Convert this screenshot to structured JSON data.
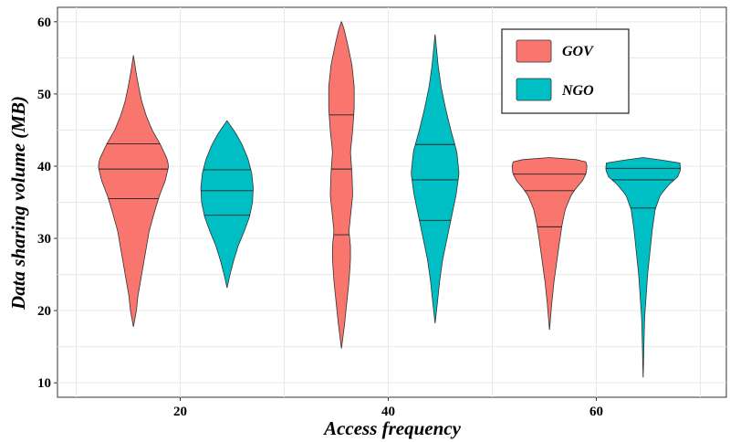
{
  "chart_data": {
    "type": "violin",
    "xlabel": "Access frequency",
    "ylabel": "Data sharing volume (MB)",
    "categories": [
      "20",
      "40",
      "60"
    ],
    "ylim": [
      8,
      62
    ],
    "yticks": [
      10,
      20,
      30,
      40,
      50,
      60
    ],
    "grid": true,
    "legend_position": "top-right",
    "series": [
      {
        "name": "GOV",
        "color": "#F8766D",
        "violins": [
          {
            "category": "20",
            "quantiles": [
              35.5,
              39.6,
              43.1
            ],
            "profile": [
              [
                17.8,
                0.002
              ],
              [
                20,
                0.08
              ],
              [
                22,
                0.12
              ],
              [
                25,
                0.22
              ],
              [
                28,
                0.32
              ],
              [
                31,
                0.42
              ],
              [
                34,
                0.58
              ],
              [
                36,
                0.7
              ],
              [
                38,
                0.85
              ],
              [
                40,
                0.94
              ],
              [
                41,
                0.9
              ],
              [
                43,
                0.72
              ],
              [
                45,
                0.5
              ],
              [
                47,
                0.34
              ],
              [
                49,
                0.22
              ],
              [
                51,
                0.14
              ],
              [
                53,
                0.07
              ],
              [
                55.3,
                0.002
              ]
            ]
          },
          {
            "category": "40",
            "quantiles": [
              30.5,
              39.6,
              47.1
            ],
            "profile": [
              [
                14.8,
                0.002
              ],
              [
                18,
                0.08
              ],
              [
                21,
                0.14
              ],
              [
                24,
                0.2
              ],
              [
                27,
                0.24
              ],
              [
                29,
                0.24
              ],
              [
                31,
                0.2
              ],
              [
                33,
                0.24
              ],
              [
                36,
                0.3
              ],
              [
                39,
                0.28
              ],
              [
                42,
                0.24
              ],
              [
                45,
                0.3
              ],
              [
                48,
                0.34
              ],
              [
                51,
                0.34
              ],
              [
                54,
                0.28
              ],
              [
                57,
                0.16
              ],
              [
                59,
                0.07
              ],
              [
                60,
                0.002
              ]
            ]
          },
          {
            "category": "60",
            "quantiles": [
              31.6,
              36.6,
              38.9
            ],
            "profile": [
              [
                17.4,
                0.002
              ],
              [
                21,
                0.06
              ],
              [
                24,
                0.12
              ],
              [
                27,
                0.2
              ],
              [
                30,
                0.28
              ],
              [
                32,
                0.34
              ],
              [
                34,
                0.42
              ],
              [
                36,
                0.58
              ],
              [
                37,
                0.72
              ],
              [
                38,
                0.88
              ],
              [
                39,
                0.98
              ],
              [
                40,
                1.0
              ],
              [
                40.8,
                0.96
              ],
              [
                41.2,
                0.002
              ]
            ]
          }
        ]
      },
      {
        "name": "NGO",
        "color": "#00BFC4",
        "violins": [
          {
            "category": "20",
            "quantiles": [
              33.2,
              36.6,
              39.5
            ],
            "profile": [
              [
                23.2,
                0.002
              ],
              [
                25,
                0.08
              ],
              [
                27,
                0.18
              ],
              [
                29,
                0.3
              ],
              [
                31,
                0.46
              ],
              [
                33,
                0.6
              ],
              [
                35,
                0.68
              ],
              [
                37,
                0.7
              ],
              [
                39,
                0.66
              ],
              [
                41,
                0.56
              ],
              [
                43,
                0.4
              ],
              [
                44.5,
                0.24
              ],
              [
                46.3,
                0.002
              ]
            ]
          },
          {
            "category": "40",
            "quantiles": [
              32.5,
              38.1,
              43.0
            ],
            "profile": [
              [
                18.3,
                0.002
              ],
              [
                21,
                0.06
              ],
              [
                24,
                0.12
              ],
              [
                27,
                0.2
              ],
              [
                30,
                0.32
              ],
              [
                33,
                0.44
              ],
              [
                36,
                0.56
              ],
              [
                39,
                0.64
              ],
              [
                42,
                0.58
              ],
              [
                45,
                0.42
              ],
              [
                48,
                0.28
              ],
              [
                51,
                0.16
              ],
              [
                54,
                0.08
              ],
              [
                58.2,
                0.002
              ]
            ]
          },
          {
            "category": "60",
            "quantiles": [
              34.2,
              38.1,
              39.7
            ],
            "profile": [
              [
                10.8,
                0.002
              ],
              [
                15,
                0.02
              ],
              [
                19,
                0.04
              ],
              [
                22,
                0.08
              ],
              [
                25,
                0.12
              ],
              [
                28,
                0.18
              ],
              [
                31,
                0.24
              ],
              [
                34,
                0.32
              ],
              [
                36,
                0.46
              ],
              [
                37.5,
                0.7
              ],
              [
                38.5,
                0.92
              ],
              [
                39.5,
                1.0
              ],
              [
                40.5,
                0.98
              ],
              [
                41.2,
                0.002
              ]
            ]
          }
        ]
      }
    ]
  }
}
